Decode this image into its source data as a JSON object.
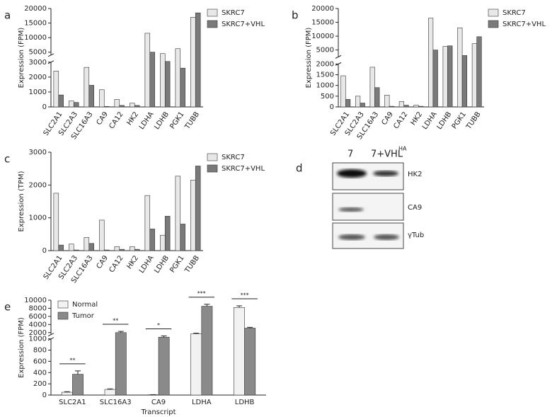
{
  "chart_data": [
    {
      "type": "bar",
      "panel_label": "a",
      "ylabel": "Expression (FPM)",
      "categories": [
        "SLC2A1",
        "SLC2A3",
        "SLC16A3",
        "CA9",
        "CA12",
        "HK2",
        "LDHA",
        "LDHB",
        "PGK1",
        "TUBB"
      ],
      "series": [
        {
          "name": "SKRC7",
          "color": "#e8e8e8",
          "values": [
            2400,
            400,
            2650,
            1150,
            500,
            250,
            11500,
            4500,
            6200,
            17000
          ]
        },
        {
          "name": "SKRC7+VHL",
          "color": "#7a7a7a",
          "values": [
            800,
            300,
            1450,
            30,
            100,
            100,
            5000,
            3100,
            2600,
            18500
          ]
        }
      ],
      "ysegments": [
        {
          "ylim": [
            0,
            3000
          ],
          "yticks": [
            0,
            1000,
            2000,
            3000
          ]
        },
        {
          "ylim": [
            4000,
            20000
          ],
          "yticks": [
            5000,
            10000,
            15000,
            20000
          ]
        }
      ],
      "legend": "outside right"
    },
    {
      "type": "bar",
      "panel_label": "b",
      "ylabel": "Expression (FPM)",
      "categories": [
        "SLC2A1",
        "SLC2A3",
        "SLC16A3",
        "CA9",
        "CA12",
        "HK2",
        "LDHA",
        "LDHB",
        "PGK1",
        "TUBB"
      ],
      "series": [
        {
          "name": "SKRC7",
          "color": "#e8e8e8",
          "values": [
            1450,
            500,
            1850,
            550,
            250,
            80,
            16500,
            6300,
            13000,
            7300
          ]
        },
        {
          "name": "SKRC7+VHL",
          "color": "#7a7a7a",
          "values": [
            350,
            180,
            900,
            30,
            80,
            30,
            5000,
            6500,
            3000,
            9800
          ]
        }
      ],
      "ysegments": [
        {
          "ylim": [
            0,
            2000
          ],
          "yticks": [
            0,
            500,
            1000,
            1500,
            2000
          ]
        },
        {
          "ylim": [
            2500,
            20000
          ],
          "yticks": [
            5000,
            10000,
            15000,
            20000
          ]
        }
      ],
      "legend": "outside right"
    },
    {
      "type": "bar",
      "panel_label": "c",
      "ylabel": "Expression (TPM)",
      "categories": [
        "SLC2A1",
        "SLC2A3",
        "SLC16A3",
        "CA9",
        "CA12",
        "HK2",
        "LDHA",
        "LDHB",
        "PGK1",
        "TUBB"
      ],
      "series": [
        {
          "name": "SKRC7",
          "color": "#e8e8e8",
          "values": [
            1750,
            200,
            400,
            930,
            120,
            120,
            1680,
            470,
            2270,
            2150
          ]
        },
        {
          "name": "SKRC7+VHL",
          "color": "#7a7a7a",
          "values": [
            170,
            20,
            220,
            20,
            40,
            40,
            660,
            1050,
            810,
            2580
          ]
        }
      ],
      "ysegments": [
        {
          "ylim": [
            0,
            3000
          ],
          "yticks": [
            0,
            1000,
            2000,
            3000
          ]
        }
      ],
      "legend": "outside right"
    },
    {
      "type": "bar",
      "panel_label": "e",
      "ylabel": "Expression (FPM)",
      "xlabel": "Transcript",
      "categories": [
        "SLC2A1",
        "SLC16A3",
        "CA9",
        "LDHA",
        "LDHB"
      ],
      "series": [
        {
          "name": "Normal",
          "color": "#f2f2f2",
          "values": [
            50,
            100,
            5,
            1700,
            8200
          ],
          "errors": [
            10,
            10,
            2,
            150,
            400
          ]
        },
        {
          "name": "Tumor",
          "color": "#8a8a8a",
          "values": [
            370,
            2000,
            1200,
            8500,
            3100
          ],
          "errors": [
            60,
            300,
            150,
            500,
            200
          ]
        }
      ],
      "significance": [
        "**",
        "**",
        "*",
        "***",
        "***"
      ],
      "ysegments": [
        {
          "ylim": [
            0,
            1000
          ],
          "yticks": [
            0,
            200,
            400,
            600,
            800,
            1000
          ]
        },
        {
          "ylim": [
            1500,
            10000
          ],
          "yticks": [
            2000,
            4000,
            6000,
            8000,
            10000
          ]
        }
      ],
      "legend": "upper left"
    }
  ],
  "blot": {
    "panel_label": "d",
    "lanes": [
      "7",
      "7+VHL"
    ],
    "lane_superscript": "HA",
    "rows": [
      "HK2",
      "CA9",
      "γTub"
    ]
  }
}
